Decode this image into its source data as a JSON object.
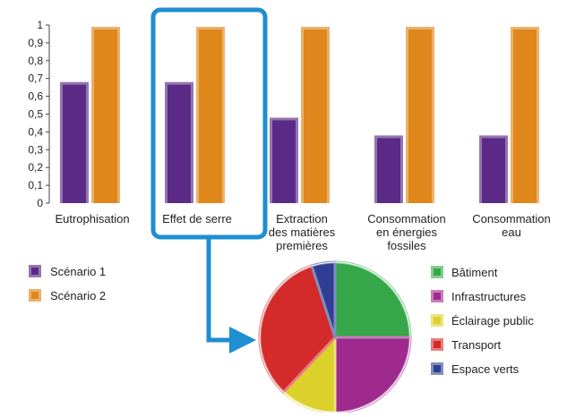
{
  "colors": {
    "scenario1": "#5b2a86",
    "scenario2": "#e0871c",
    "highlight": "#1e8fd0",
    "batiment": "#36a84a",
    "infrastructures": "#9e2a8e",
    "eclairage": "#dcd02a",
    "transport": "#d42a2a",
    "espaces": "#2e3f93"
  },
  "chart_data": [
    {
      "type": "bar",
      "categories": [
        [
          "Eutrophisation"
        ],
        [
          "Effet de serre"
        ],
        [
          "Extraction",
          "des matières",
          "premières"
        ],
        [
          "Consommation",
          "en énergies",
          "fossiles"
        ],
        [
          "Consommation",
          "eau"
        ]
      ],
      "series": [
        {
          "name": "Scénario 1",
          "values": [
            0.68,
            0.68,
            0.48,
            0.38,
            0.38
          ]
        },
        {
          "name": "Scénario 2",
          "values": [
            0.99,
            0.99,
            0.99,
            0.99,
            0.99
          ]
        }
      ],
      "ylim": [
        0,
        1
      ],
      "yticks": [
        "0",
        "0,1",
        "0,2",
        "0,3",
        "0,4",
        "0,5",
        "0,6",
        "0,7",
        "0,8",
        "0,9",
        "1"
      ],
      "grid": false,
      "legend": "bottom-left",
      "highlighted_category": "Effet de serre"
    },
    {
      "type": "pie",
      "labels": [
        "Bâtiment",
        "Infrastructures",
        "Éclairage public",
        "Transport",
        "Espace verts"
      ],
      "values": [
        25,
        25,
        12,
        33,
        5
      ],
      "legend": "right"
    }
  ]
}
